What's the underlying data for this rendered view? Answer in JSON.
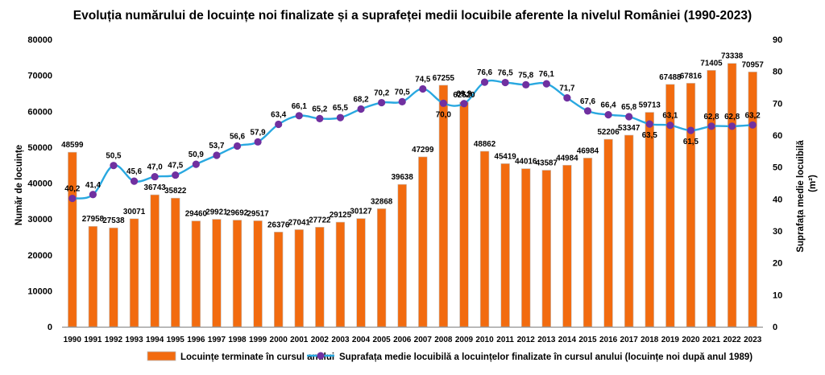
{
  "chart_data": {
    "type": "bar",
    "title": "Evoluția numărului de locuințe noi finalizate și a suprafeței medii locuibile aferente la nivelul României (1990-2023)",
    "ylabel": "Număr de locuințe",
    "y2label_line1": "Suprafața medie locuibilă",
    "y2label_line2": "(m²)",
    "ylim": [
      0,
      80000
    ],
    "y2lim": [
      0,
      90
    ],
    "yticks": [
      "0",
      "10000",
      "20000",
      "30000",
      "40000",
      "50000",
      "60000",
      "70000",
      "80000"
    ],
    "y2ticks": [
      "0",
      "10",
      "20",
      "30",
      "40",
      "50",
      "60",
      "70",
      "80",
      "90"
    ],
    "categories": [
      "1990",
      "1991",
      "1992",
      "1993",
      "1994",
      "1995",
      "1996",
      "1997",
      "1998",
      "1999",
      "2000",
      "2001",
      "2002",
      "2003",
      "2004",
      "2005",
      "2006",
      "2007",
      "2008",
      "2009",
      "2010",
      "2011",
      "2012",
      "2013",
      "2014",
      "2015",
      "2016",
      "2017",
      "2018",
      "2019",
      "2020",
      "2021",
      "2022",
      "2023"
    ],
    "series": [
      {
        "name": "Locuințe terminate în cursul anului",
        "type": "bar",
        "axis": "left",
        "color": "#F26B0F",
        "values": [
          48599,
          27958,
          27538,
          30071,
          36743,
          35822,
          29460,
          29921,
          29692,
          29517,
          26376,
          27041,
          27722,
          29125,
          30127,
          32868,
          39638,
          47299,
          67255,
          62520,
          48862,
          45419,
          44016,
          43587,
          44984,
          46984,
          52206,
          53347,
          59713,
          67488,
          67816,
          71405,
          73338,
          70957
        ],
        "labels": [
          "48599",
          "27958",
          "27538",
          "30071",
          "36743",
          "35822",
          "29460",
          "29921",
          "29692",
          "29517",
          "26376",
          "27041",
          "27722",
          "29125",
          "30127",
          "32868",
          "39638",
          "47299",
          "67255",
          "62520",
          "48862",
          "45419",
          "44016",
          "43587",
          "44984",
          "46984",
          "52206",
          "53347",
          "59713",
          "67488",
          "67816",
          "71405",
          "73338",
          "70957"
        ]
      },
      {
        "name": "Suprafața medie locuibilă a locuințelor finalizate în cursul anului (locuințe noi după anul 1989)",
        "type": "line",
        "axis": "right",
        "color": "#29A8E0",
        "marker_color": "#7030A0",
        "values": [
          40.2,
          41.4,
          50.5,
          45.6,
          47.0,
          47.5,
          50.9,
          53.7,
          56.6,
          57.9,
          63.4,
          66.1,
          65.2,
          65.5,
          68.2,
          70.2,
          70.5,
          74.5,
          70.0,
          69.9,
          76.6,
          76.5,
          75.8,
          76.1,
          71.7,
          67.6,
          66.4,
          65.8,
          63.5,
          63.1,
          61.5,
          62.8,
          62.8,
          63.2
        ],
        "labels": [
          "40,2",
          "41,4",
          "50,5",
          "45,6",
          "47,0",
          "47,5",
          "50,9",
          "53,7",
          "56,6",
          "57,9",
          "63,4",
          "66,1",
          "65,2",
          "65,5",
          "68,2",
          "70,2",
          "70,5",
          "74,5",
          "70,0",
          "69,9",
          "76,6",
          "76,5",
          "75,8",
          "76,1",
          "71,7",
          "67,6",
          "66,4",
          "65,8",
          "63,5",
          "63,1",
          "61,5",
          "62,8",
          "62,8",
          "63,2"
        ]
      }
    ],
    "legend_position": "bottom",
    "grid": false
  }
}
